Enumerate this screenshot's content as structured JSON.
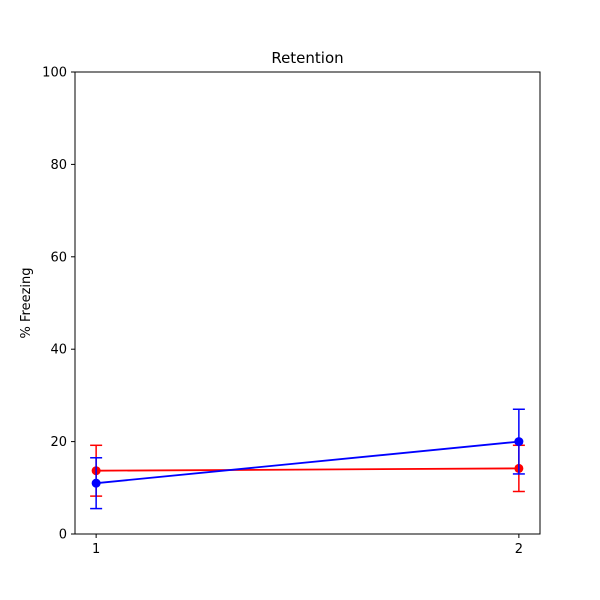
{
  "chart_data": {
    "type": "line",
    "title": "Retention",
    "xlabel": "",
    "ylabel": "% Freezing",
    "x": [
      1,
      2
    ],
    "x_tick_labels": [
      "1",
      "2"
    ],
    "xlim": [
      0.95,
      2.05
    ],
    "ylim": [
      0,
      100
    ],
    "y_ticks": [
      0,
      20,
      40,
      60,
      80,
      100
    ],
    "y_tick_labels": [
      "0",
      "20",
      "40",
      "60",
      "80",
      "100"
    ],
    "grid": false,
    "legend": "none",
    "series": [
      {
        "color": "#ff0000",
        "values": [
          13.7,
          14.2
        ],
        "error": [
          5.5,
          5.0
        ],
        "marker": "circle"
      },
      {
        "color": "#0000ff",
        "values": [
          11.0,
          20.0
        ],
        "error": [
          5.5,
          7.0
        ],
        "marker": "circle"
      }
    ]
  }
}
